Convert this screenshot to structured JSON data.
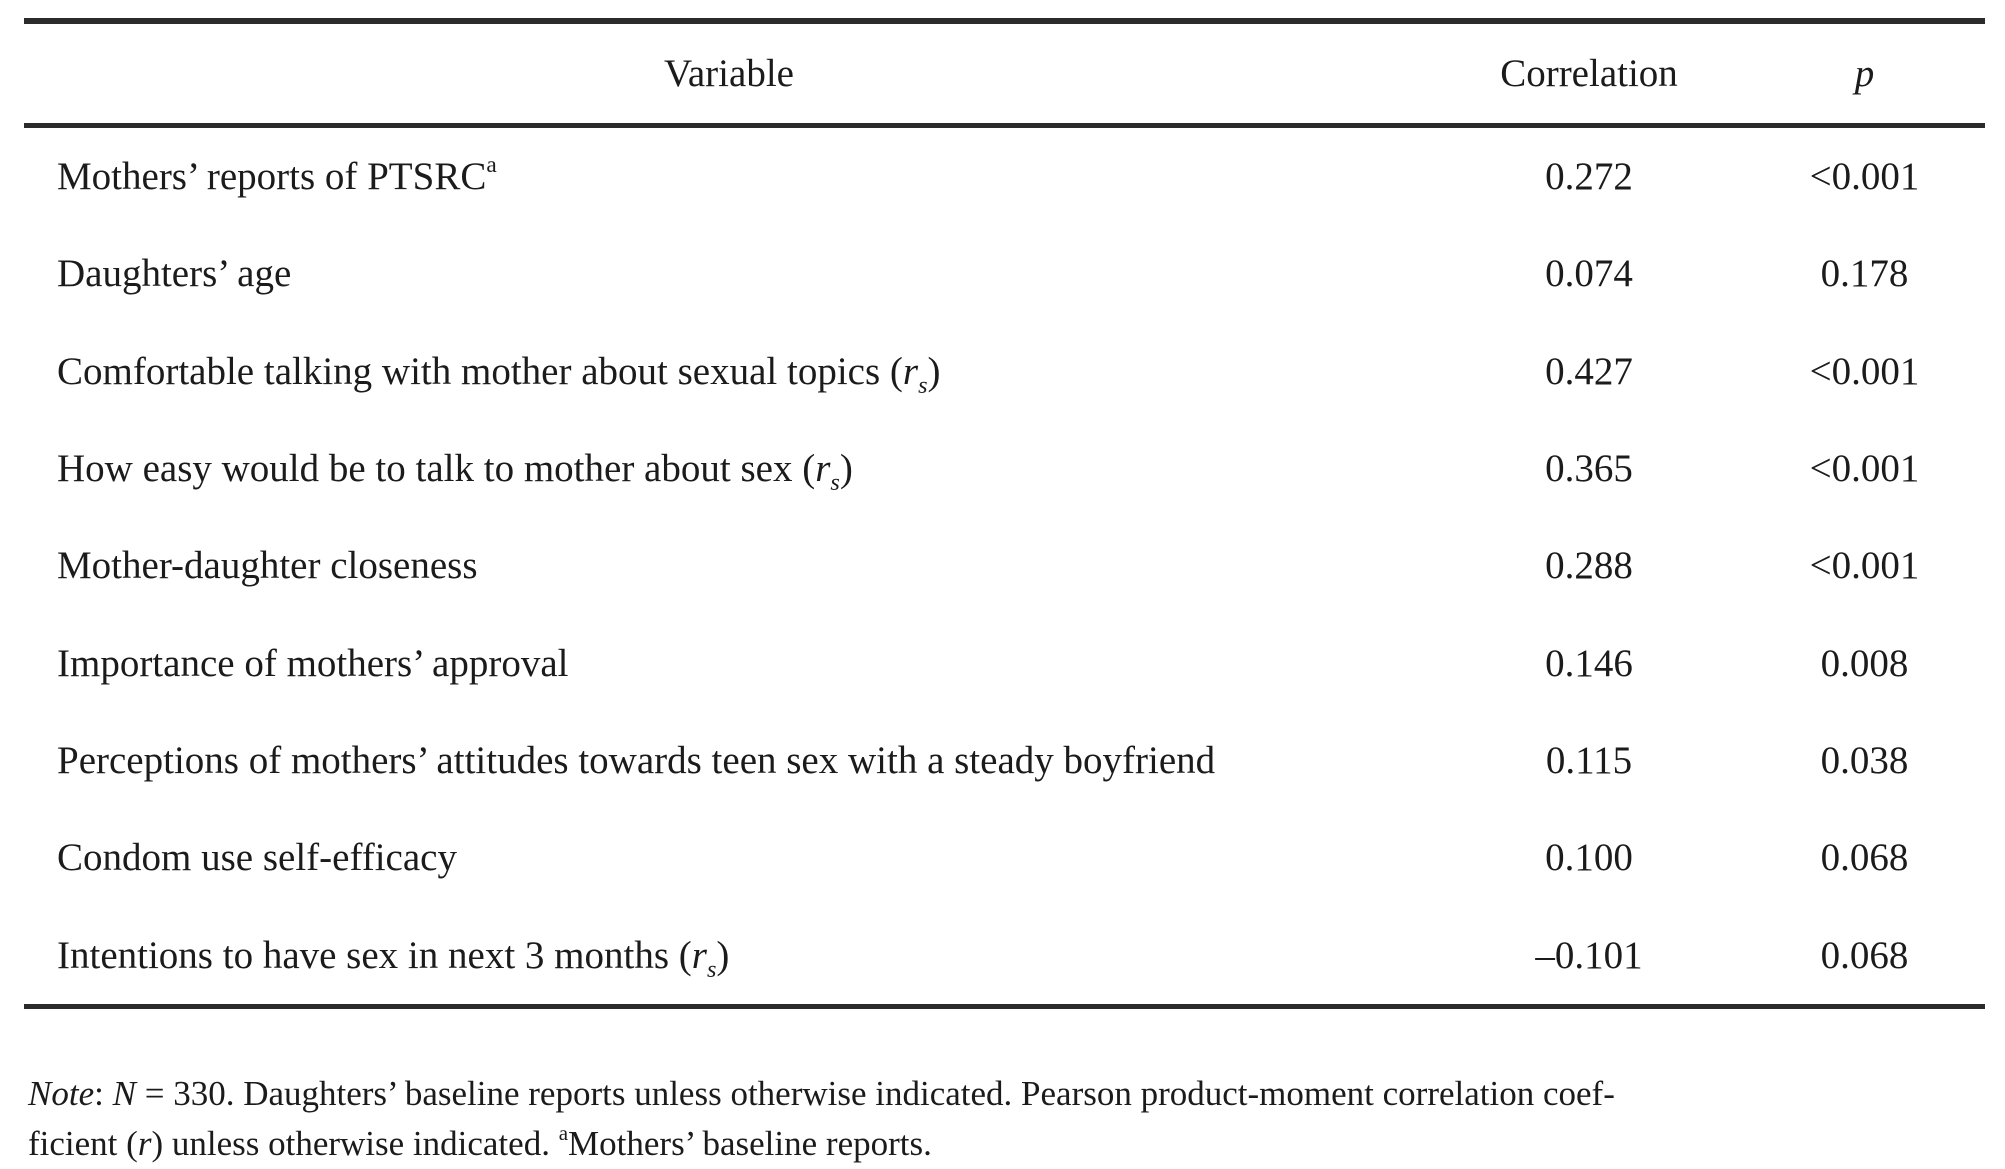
{
  "page": {
    "background_color": "#ffffff",
    "text_color": "#1b1b1b",
    "rule_color": "#2b2b2b"
  },
  "table": {
    "header": {
      "variable": "Variable",
      "correlation": "Correlation",
      "p": "p"
    },
    "glyphs": {
      "paren_open": "(",
      "r": "r",
      "s": "s",
      "paren_close": ")"
    },
    "rows": [
      {
        "label": "Mothers’ reports of PTSRC",
        "superscript": "a",
        "correlation": "0.272",
        "p": "<0.001"
      },
      {
        "label": "Daughters’ age",
        "correlation": "0.074",
        "p": "0.178"
      },
      {
        "label": "Comfortable talking with mother about sexual topics ",
        "rs": true,
        "correlation": "0.427",
        "p": "<0.001"
      },
      {
        "label": "How easy would be to talk to mother about sex ",
        "rs": true,
        "correlation": "0.365",
        "p": "<0.001"
      },
      {
        "label": "Mother-daughter closeness",
        "correlation": "0.288",
        "p": "<0.001"
      },
      {
        "label": "Importance of mothers’ approval",
        "correlation": "0.146",
        "p": "0.008"
      },
      {
        "label": "Perceptions of mothers’ attitudes towards teen sex with a steady boyfriend",
        "correlation": "0.115",
        "p": "0.038"
      },
      {
        "label": "Condom use self-efficacy",
        "correlation": "0.100",
        "p": "0.068"
      },
      {
        "label": "Intentions to have sex in next 3 months ",
        "rs": true,
        "correlation": "–0.101",
        "p": "0.068"
      }
    ]
  },
  "note": {
    "note_word": "Note",
    "seg1": ": ",
    "n_symbol": "N",
    "seg2": " = 330. Daughters’ baseline reports unless otherwise indicated. Pearson product-moment correlation coef-",
    "seg3": "ficient (",
    "r_symbol": "r",
    "seg4": ") unless otherwise indicated. ",
    "sup_a": "a",
    "seg5": "Mothers’ baseline reports."
  }
}
